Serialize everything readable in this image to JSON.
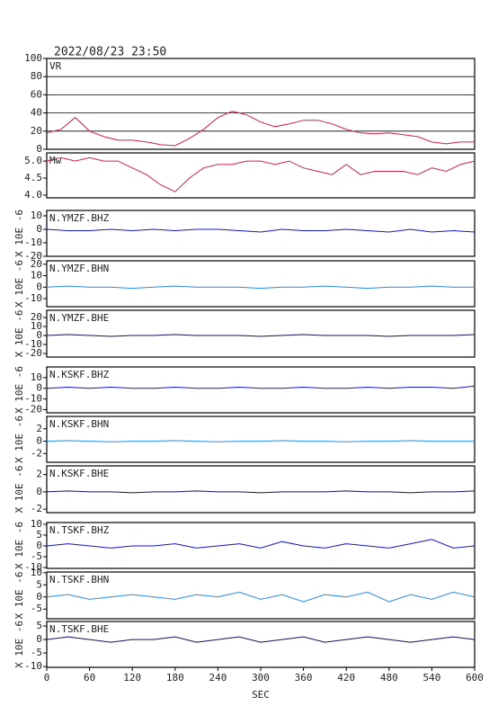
{
  "chart_data": [
    {
      "type": "line",
      "title": "2022/08/23 23:50",
      "x": [
        0,
        20,
        40,
        60,
        80,
        100,
        120,
        140,
        160,
        180,
        200,
        220,
        240,
        260,
        280,
        300,
        320,
        340,
        360,
        380,
        400,
        420,
        440,
        460,
        480,
        500,
        520,
        540,
        560,
        580,
        600
      ],
      "series": [
        {
          "name": "VR",
          "color": "#d0204a",
          "values": [
            18,
            22,
            35,
            20,
            14,
            10,
            10,
            8,
            5,
            4,
            12,
            22,
            35,
            42,
            38,
            30,
            25,
            28,
            32,
            32,
            28,
            22,
            18,
            17,
            18,
            16,
            14,
            8,
            6,
            8,
            8
          ]
        }
      ],
      "xlim": [
        0,
        600
      ],
      "ylim": [
        0,
        100
      ],
      "yticks": [
        0,
        20,
        40,
        60,
        80,
        100
      ],
      "grid": true
    },
    {
      "type": "line",
      "x": [
        0,
        20,
        40,
        60,
        80,
        100,
        120,
        140,
        160,
        180,
        200,
        220,
        240,
        260,
        280,
        300,
        320,
        340,
        360,
        380,
        400,
        420,
        440,
        460,
        480,
        500,
        520,
        540,
        560,
        580,
        600
      ],
      "series": [
        {
          "name": "Mw",
          "color": "#d0204a",
          "values": [
            5.0,
            5.1,
            5.0,
            5.1,
            5.0,
            5.0,
            4.8,
            4.6,
            4.3,
            4.1,
            4.5,
            4.8,
            4.9,
            4.9,
            5.0,
            5.0,
            4.9,
            5.0,
            4.8,
            4.7,
            4.6,
            4.9,
            4.6,
            4.7,
            4.7,
            4.7,
            4.6,
            4.8,
            4.7,
            4.9,
            5.0
          ]
        }
      ],
      "xlim": [
        0,
        600
      ],
      "ylim": [
        3.92,
        5.24
      ],
      "yticks": [
        {
          "value": 4,
          "label": "4.0"
        },
        4.5,
        {
          "value": 5,
          "label": "5.0"
        }
      ],
      "grid": false
    },
    {
      "type": "line",
      "ylabel": "X 10E -6",
      "x": [
        0,
        30,
        60,
        90,
        120,
        150,
        180,
        210,
        240,
        270,
        300,
        330,
        360,
        390,
        420,
        450,
        480,
        510,
        540,
        570,
        600
      ],
      "series": [
        {
          "name": "N.YMZF.BHZ",
          "color": "#1414c8",
          "values": [
            0,
            -1,
            -1,
            0,
            -1,
            0,
            -1,
            0,
            0,
            -1,
            -2,
            0,
            -1,
            -1,
            0,
            -1,
            -2,
            0,
            -2,
            -1,
            -2
          ]
        }
      ],
      "xlim": [
        0,
        600
      ],
      "ylim": [
        -20,
        14
      ],
      "yticks": [
        -20,
        -10,
        0,
        10
      ],
      "grid": false
    },
    {
      "type": "line",
      "ylabel": "X 10E -6",
      "x": [
        0,
        30,
        60,
        90,
        120,
        150,
        180,
        210,
        240,
        270,
        300,
        330,
        360,
        390,
        420,
        450,
        480,
        510,
        540,
        570,
        600
      ],
      "series": [
        {
          "name": "N.YMZF.BHN",
          "color": "#2a8ae6",
          "values": [
            0,
            1,
            0,
            0,
            -1,
            0,
            1,
            0,
            0,
            0,
            -1,
            0,
            0,
            1,
            0,
            -1,
            0,
            0,
            1,
            0,
            0
          ]
        }
      ],
      "xlim": [
        0,
        600
      ],
      "ylim": [
        -17,
        23
      ],
      "yticks": [
        -10,
        0,
        10,
        20
      ],
      "grid": false
    },
    {
      "type": "line",
      "ylabel": "X 10E -6",
      "x": [
        0,
        30,
        60,
        90,
        120,
        150,
        180,
        210,
        240,
        270,
        300,
        330,
        360,
        390,
        420,
        450,
        480,
        510,
        540,
        570,
        600
      ],
      "series": [
        {
          "name": "N.YMZF.BHE",
          "color": "#12125e",
          "values": [
            0,
            1,
            0,
            -1,
            0,
            0,
            1,
            0,
            0,
            0,
            -1,
            0,
            1,
            0,
            0,
            0,
            -1,
            0,
            0,
            0,
            1
          ]
        }
      ],
      "xlim": [
        0,
        600
      ],
      "ylim": [
        -24,
        28
      ],
      "yticks": [
        -20,
        -10,
        0,
        10,
        20
      ],
      "grid": false
    },
    {
      "type": "line",
      "ylabel": "X 10E -6",
      "x": [
        0,
        30,
        60,
        90,
        120,
        150,
        180,
        210,
        240,
        270,
        300,
        330,
        360,
        390,
        420,
        450,
        480,
        510,
        540,
        570,
        600
      ],
      "series": [
        {
          "name": "N.KSKF.BHZ",
          "color": "#1414c8",
          "values": [
            0,
            1,
            0,
            1,
            0,
            0,
            1,
            0,
            0,
            1,
            0,
            0,
            1,
            0,
            0,
            1,
            0,
            1,
            1,
            0,
            2
          ]
        }
      ],
      "xlim": [
        0,
        600
      ],
      "ylim": [
        -23,
        20
      ],
      "yticks": [
        -20,
        -10,
        0,
        10
      ],
      "grid": false
    },
    {
      "type": "line",
      "ylabel": "X 10E -6",
      "x": [
        0,
        30,
        60,
        90,
        120,
        150,
        180,
        210,
        240,
        270,
        300,
        330,
        360,
        390,
        420,
        450,
        480,
        510,
        540,
        570,
        600
      ],
      "series": [
        {
          "name": "N.KSKF.BHN",
          "color": "#2a8ae6",
          "values": [
            0,
            0.1,
            0,
            -0.1,
            0,
            0,
            0.1,
            0,
            -0.1,
            0,
            0,
            0.1,
            0,
            0,
            -0.1,
            0,
            0,
            0.1,
            0,
            0,
            0
          ]
        }
      ],
      "xlim": [
        0,
        600
      ],
      "ylim": [
        -3.4,
        4
      ],
      "yticks": [
        -2,
        0,
        2
      ],
      "grid": false
    },
    {
      "type": "line",
      "ylabel": "X 10E -6",
      "x": [
        0,
        30,
        60,
        90,
        120,
        150,
        180,
        210,
        240,
        270,
        300,
        330,
        360,
        390,
        420,
        450,
        480,
        510,
        540,
        570,
        600
      ],
      "series": [
        {
          "name": "N.KSKF.BHE",
          "color": "#12125e",
          "values": [
            0,
            0.1,
            0,
            0,
            -0.1,
            0,
            0,
            0.1,
            0,
            0,
            -0.1,
            0,
            0,
            0,
            0.1,
            0,
            0,
            -0.1,
            0,
            0,
            0.1
          ]
        }
      ],
      "xlim": [
        0,
        600
      ],
      "ylim": [
        -2.4,
        3
      ],
      "yticks": [
        -2,
        0,
        2
      ],
      "grid": false
    },
    {
      "type": "line",
      "ylabel": "X 10E -6",
      "x": [
        0,
        30,
        60,
        90,
        120,
        150,
        180,
        210,
        240,
        270,
        300,
        330,
        360,
        390,
        420,
        450,
        480,
        510,
        540,
        570,
        600
      ],
      "series": [
        {
          "name": "N.TSKF.BHZ",
          "color": "#1414c8",
          "values": [
            0,
            1,
            0,
            -1,
            0,
            0,
            1,
            -1,
            0,
            1,
            -1,
            2,
            0,
            -1,
            1,
            0,
            -1,
            1,
            3,
            -1,
            0
          ]
        }
      ],
      "xlim": [
        0,
        600
      ],
      "ylim": [
        -10.4,
        10.8
      ],
      "yticks": [
        -10,
        -5,
        0,
        5,
        10
      ],
      "grid": false
    },
    {
      "type": "line",
      "ylabel": "X 10E -6",
      "x": [
        0,
        30,
        60,
        90,
        120,
        150,
        180,
        210,
        240,
        270,
        300,
        330,
        360,
        390,
        420,
        450,
        480,
        510,
        540,
        570,
        600
      ],
      "series": [
        {
          "name": "N.TSKF.BHN",
          "color": "#2a8ae6",
          "values": [
            0,
            1,
            -1,
            0,
            1,
            0,
            -1,
            1,
            0,
            2,
            -1,
            1,
            -2,
            1,
            0,
            2,
            -2,
            1,
            -1,
            2,
            0
          ]
        }
      ],
      "xlim": [
        0,
        600
      ],
      "ylim": [
        -9,
        10.3
      ],
      "yticks": [
        -5,
        0,
        5,
        10
      ],
      "grid": false
    },
    {
      "type": "line",
      "ylabel": "X 10E -6",
      "xlabel": "SEC",
      "x": [
        0,
        30,
        60,
        90,
        120,
        150,
        180,
        210,
        240,
        270,
        300,
        330,
        360,
        390,
        420,
        450,
        480,
        510,
        540,
        570,
        600
      ],
      "series": [
        {
          "name": "N.TSKF.BHE",
          "color": "#12125e",
          "values": [
            0,
            1,
            0,
            -1,
            0,
            0,
            1,
            -1,
            0,
            1,
            -1,
            0,
            1,
            -1,
            0,
            1,
            0,
            -1,
            0,
            1,
            0
          ]
        }
      ],
      "xlim": [
        0,
        600
      ],
      "ylim": [
        -10.3,
        6.7
      ],
      "yticks": [
        -10,
        -5,
        0,
        5
      ],
      "xticks": [
        0,
        60,
        120,
        180,
        240,
        300,
        360,
        420,
        480,
        540,
        600
      ],
      "grid": false
    }
  ]
}
